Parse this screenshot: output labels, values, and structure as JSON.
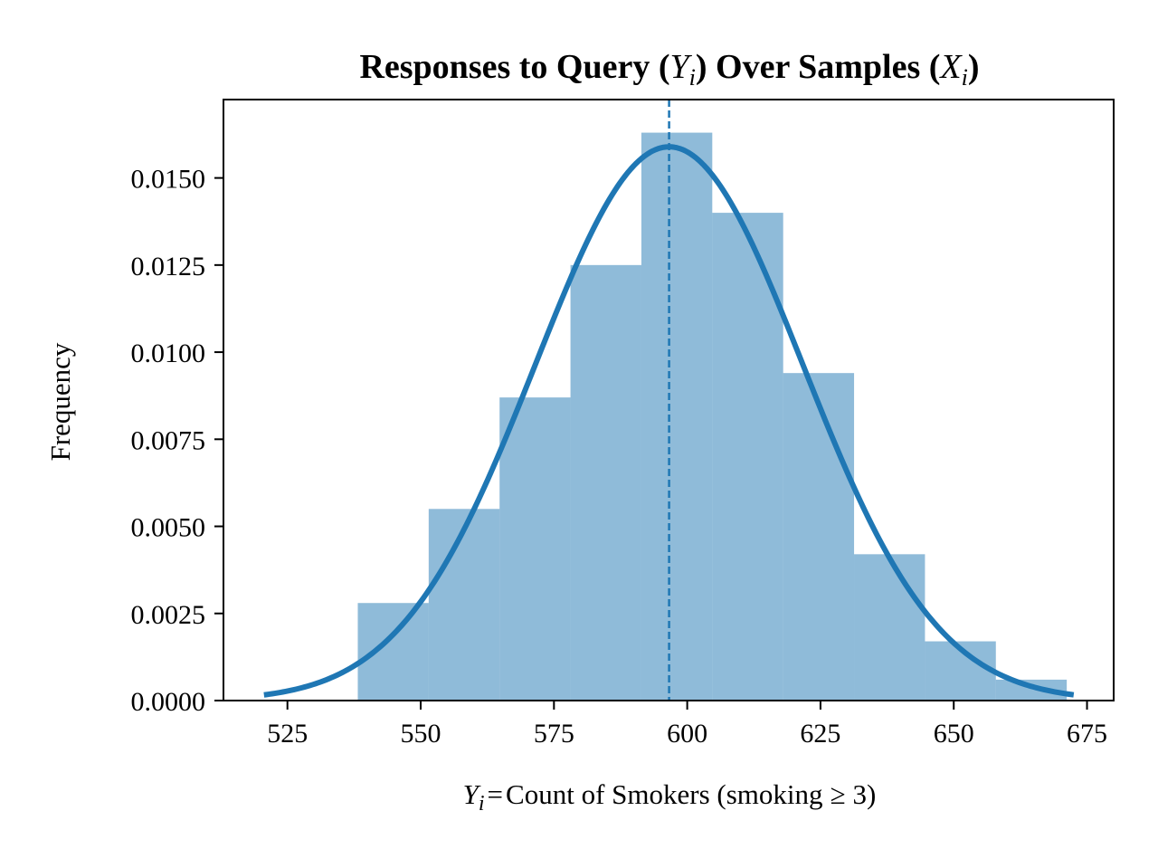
{
  "chart_data": {
    "type": "bar",
    "title_parts": {
      "before_y": "Responses to Query (",
      "y_symbol": "Y",
      "subscript": "i",
      "middle": ") Over Samples (",
      "x_symbol": "X",
      "after": ")"
    },
    "xlabel_parts": {
      "symbol": "Y",
      "subscript": "i",
      "equals": "=",
      "text": "Count of Smokers (smoking",
      "geq": "≥",
      "threshold": "3)"
    },
    "ylabel": "Frequency",
    "xlim": [
      513,
      680
    ],
    "ylim": [
      0,
      0.01725
    ],
    "x_ticks": [
      525,
      550,
      575,
      600,
      625,
      650,
      675
    ],
    "x_tick_labels": [
      "525",
      "550",
      "575",
      "600",
      "625",
      "650",
      "675"
    ],
    "y_ticks": [
      0,
      0.0025,
      0.005,
      0.0075,
      0.01,
      0.0125,
      0.015
    ],
    "y_tick_labels": [
      "0.0000",
      "0.0025",
      "0.0050",
      "0.0075",
      "0.0100",
      "0.0125",
      "0.0150"
    ],
    "histogram": {
      "bin_edges": [
        538.2,
        551.5,
        564.8,
        578.1,
        591.4,
        604.7,
        618.0,
        631.3,
        644.6,
        657.9,
        671.2
      ],
      "values": [
        0.0028,
        0.0055,
        0.0087,
        0.0125,
        0.0163,
        0.014,
        0.0094,
        0.0042,
        0.0017,
        0.0006
      ],
      "color": "#1f77b4",
      "alpha": 0.5
    },
    "normal_fit": {
      "mean": 596.6,
      "std": 25.1,
      "x_range": [
        520.6,
        672.5
      ],
      "color": "#1f77b4"
    },
    "mean_line": {
      "x": 596.6,
      "color": "#1f77b4",
      "style": "dashed"
    },
    "grid": false
  }
}
